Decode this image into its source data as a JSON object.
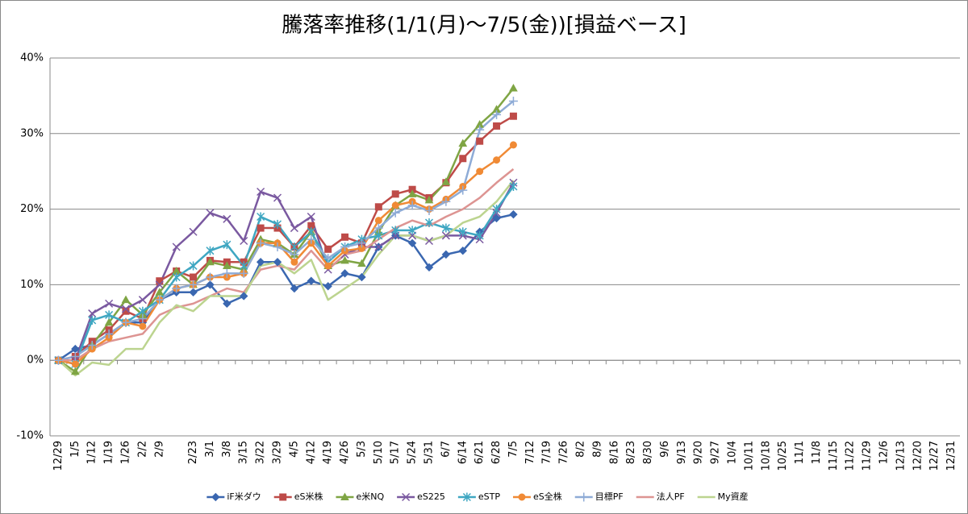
{
  "chart_data": {
    "type": "line",
    "title": "騰落率推移(1/1(月)～7/5(金))[損益ベース]",
    "categories": [
      "12/29",
      "1/5",
      "1/12",
      "1/19",
      "1/26",
      "2/2",
      "2/9",
      null,
      "2/23",
      "3/1",
      "3/8",
      "3/15",
      "3/22",
      "3/29",
      "4/5",
      "4/12",
      "4/19",
      "4/26",
      "5/3",
      "5/10",
      "5/17",
      "5/24",
      "5/31",
      "6/7",
      "6/14",
      "6/21",
      "6/28",
      "7/5",
      "7/12",
      "7/19",
      "7/26",
      "8/2",
      "8/9",
      "8/16",
      "8/23",
      "8/30",
      "9/6",
      "9/13",
      "9/20",
      "9/27",
      "10/4",
      "10/11",
      "10/18",
      "10/25",
      "11/1",
      "11/8",
      "11/15",
      "11/22",
      "11/29",
      "12/6",
      "12/13",
      "12/20",
      "12/27",
      "12/31"
    ],
    "series": [
      {
        "name": "iF米ダウ",
        "color": "#3a67b0",
        "marker": "diamond",
        "values": [
          0,
          1.5,
          2,
          3.5,
          5,
          5,
          8,
          9,
          9,
          10,
          7.5,
          8.5,
          13,
          13,
          9.5,
          10.5,
          9.8,
          11.5,
          11,
          15,
          16.5,
          15.5,
          12.3,
          14,
          14.5,
          17,
          18.8,
          19.3,
          null,
          null,
          null,
          null,
          null,
          null,
          null,
          null,
          null,
          null,
          null,
          null,
          null,
          null,
          null,
          null,
          null,
          null,
          null,
          null,
          null,
          null,
          null,
          null,
          null,
          null
        ]
      },
      {
        "name": "eS米株",
        "color": "#be4b48",
        "marker": "square",
        "values": [
          0,
          0.5,
          2.5,
          4,
          6.5,
          5.5,
          10.5,
          11.8,
          11,
          13.2,
          13,
          13,
          17.5,
          17.5,
          15,
          17.8,
          14.7,
          16.3,
          15.5,
          20.3,
          22,
          22.6,
          21.5,
          23.5,
          26.7,
          29,
          31,
          32.3,
          null,
          null,
          null,
          null,
          null,
          null,
          null,
          null,
          null,
          null,
          null,
          null,
          null,
          null,
          null,
          null,
          null,
          null,
          null,
          null,
          null,
          null,
          null,
          null,
          null,
          null
        ]
      },
      {
        "name": "e米NQ",
        "color": "#7fa544",
        "marker": "triangle",
        "values": [
          0,
          -1.5,
          2,
          5,
          8,
          6,
          9,
          11.8,
          10,
          13,
          12.5,
          12,
          16,
          15.5,
          14,
          17,
          12.5,
          13.2,
          12.8,
          17,
          20.5,
          22,
          21.2,
          23.6,
          28.7,
          31.2,
          33.2,
          36,
          null,
          null,
          null,
          null,
          null,
          null,
          null,
          null,
          null,
          null,
          null,
          null,
          null,
          null,
          null,
          null,
          null,
          null,
          null,
          null,
          null,
          null,
          null,
          null,
          null,
          null
        ]
      },
      {
        "name": "eS225",
        "color": "#7a59a0",
        "marker": "x",
        "values": [
          0,
          0,
          6.2,
          7.5,
          6.8,
          8,
          10,
          15,
          17,
          19.5,
          18.7,
          15.8,
          22.3,
          21.5,
          17.5,
          19,
          12,
          14,
          15,
          15,
          16.5,
          16.5,
          15.8,
          16.5,
          16.5,
          16,
          19.5,
          23.5,
          null,
          null,
          null,
          null,
          null,
          null,
          null,
          null,
          null,
          null,
          null,
          null,
          null,
          null,
          null,
          null,
          null,
          null,
          null,
          null,
          null,
          null,
          null,
          null,
          null,
          null
        ]
      },
      {
        "name": "eSTP",
        "color": "#3fa7c2",
        "marker": "star",
        "values": [
          0,
          -0.5,
          5.3,
          6,
          5,
          6.5,
          8,
          11,
          12.5,
          14.5,
          15.3,
          12.5,
          19,
          18,
          15,
          17,
          13,
          15,
          16,
          16.5,
          17.2,
          17.2,
          18.2,
          17.5,
          17,
          16.5,
          20,
          23,
          null,
          null,
          null,
          null,
          null,
          null,
          null,
          null,
          null,
          null,
          null,
          null,
          null,
          null,
          null,
          null,
          null,
          null,
          null,
          null,
          null,
          null,
          null,
          null,
          null,
          null
        ]
      },
      {
        "name": "eS全株",
        "color": "#f08a35",
        "marker": "circle",
        "values": [
          0,
          -0.5,
          1.5,
          3,
          5,
          4.5,
          8,
          9.5,
          10,
          11,
          11,
          11.5,
          15.5,
          15.5,
          13,
          15.5,
          12.5,
          14.5,
          14.8,
          18.5,
          20.5,
          21,
          20,
          21.3,
          23,
          25,
          26.5,
          28.5,
          null,
          null,
          null,
          null,
          null,
          null,
          null,
          null,
          null,
          null,
          null,
          null,
          null,
          null,
          null,
          null,
          null,
          null,
          null,
          null,
          null,
          null,
          null,
          null,
          null,
          null
        ]
      },
      {
        "name": "目標PF",
        "color": "#8eabd6",
        "marker": "plus",
        "values": [
          0,
          0.5,
          2,
          3.5,
          5,
          5.5,
          8,
          9.5,
          10,
          11,
          11.5,
          11.5,
          15.5,
          15,
          14,
          16,
          13.5,
          15,
          15.5,
          17.5,
          19.5,
          20.5,
          19.8,
          21,
          22.5,
          30.5,
          32.5,
          34.3,
          null,
          null,
          null,
          null,
          null,
          null,
          null,
          null,
          null,
          null,
          null,
          null,
          null,
          null,
          null,
          null,
          null,
          null,
          null,
          null,
          null,
          null,
          null,
          null,
          null,
          null
        ]
      },
      {
        "name": "法人PF",
        "color": "#dd9492",
        "marker": "none",
        "values": [
          0,
          0,
          1.5,
          2.5,
          3,
          3.5,
          6,
          7,
          7.5,
          8.5,
          9.5,
          9,
          12,
          12.5,
          12,
          14.5,
          12,
          14,
          14.5,
          16,
          17.5,
          18.5,
          17.8,
          19,
          20,
          21.5,
          23.5,
          25.3,
          null,
          null,
          null,
          null,
          null,
          null,
          null,
          null,
          null,
          null,
          null,
          null,
          null,
          null,
          null,
          null,
          null,
          null,
          null,
          null,
          null,
          null,
          null,
          null,
          null,
          null
        ]
      },
      {
        "name": "My資産",
        "color": "#bcd48f",
        "marker": "none",
        "values": [
          0,
          -2,
          -0.3,
          -0.6,
          1.5,
          1.5,
          5,
          7.3,
          6.5,
          8.5,
          8.5,
          8.5,
          12.5,
          13,
          11.5,
          13.3,
          8,
          9.5,
          11,
          14,
          16.5,
          16.5,
          15.8,
          16.5,
          18.2,
          19,
          21,
          23.8,
          null,
          null,
          null,
          null,
          null,
          null,
          null,
          null,
          null,
          null,
          null,
          null,
          null,
          null,
          null,
          null,
          null,
          null,
          null,
          null,
          null,
          null,
          null,
          null,
          null,
          null
        ]
      }
    ],
    "ylim": [
      -10,
      40
    ],
    "yticks": [
      {
        "value": -10,
        "label": "-10%"
      },
      {
        "value": 0,
        "label": "0%"
      },
      {
        "value": 10,
        "label": "10%"
      },
      {
        "value": 20,
        "label": "20%"
      },
      {
        "value": 30,
        "label": "30%"
      },
      {
        "value": 40,
        "label": "40%"
      }
    ],
    "grid": true,
    "legend": "bottom"
  }
}
